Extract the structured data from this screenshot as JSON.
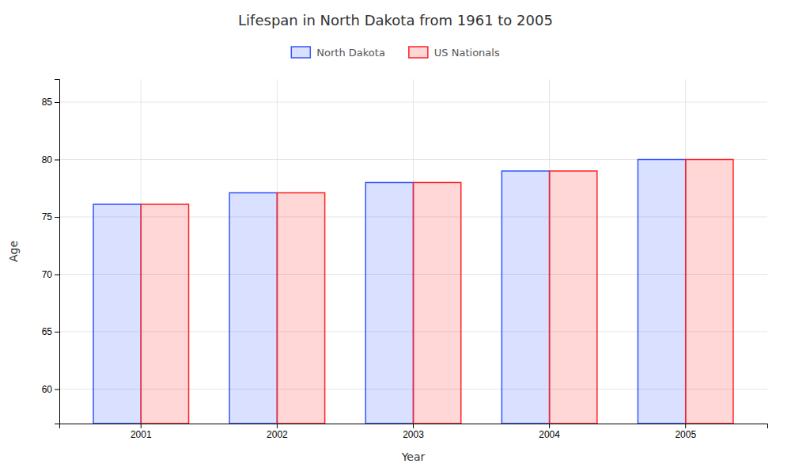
{
  "chart_data": {
    "type": "bar",
    "title": "Lifespan in North Dakota from 1961 to 2005",
    "xlabel": "Year",
    "ylabel": "Age",
    "categories": [
      "2001",
      "2002",
      "2003",
      "2004",
      "2005"
    ],
    "series": [
      {
        "name": "North Dakota",
        "color": "#3355ff",
        "values": [
          76.1,
          77.1,
          78.0,
          79.0,
          80.0
        ]
      },
      {
        "name": "US Nationals",
        "color": "#ff2222",
        "values": [
          76.1,
          77.1,
          78.0,
          79.0,
          80.0
        ]
      }
    ],
    "ylim": [
      57,
      87
    ],
    "yticks": [
      60,
      65,
      70,
      75,
      80,
      85
    ],
    "grid": true,
    "legend": "top"
  }
}
